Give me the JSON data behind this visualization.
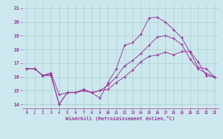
{
  "xlabel": "Windchill (Refroidissement éolien,°C)",
  "background_color": "#cce8ee",
  "line_color": "#993399",
  "grid_color": "#aacccc",
  "xlim": [
    -0.5,
    23.5
  ],
  "ylim": [
    13.7,
    21.3
  ],
  "xticks": [
    0,
    1,
    2,
    3,
    4,
    5,
    6,
    7,
    8,
    9,
    10,
    11,
    12,
    13,
    14,
    15,
    16,
    17,
    18,
    19,
    20,
    21,
    22,
    23
  ],
  "yticks": [
    14,
    15,
    16,
    17,
    18,
    19,
    20,
    21
  ],
  "line1_x": [
    0,
    1,
    2,
    3,
    4,
    5,
    6,
    7,
    8,
    9,
    10,
    11,
    12,
    13,
    14,
    15,
    16,
    17,
    18,
    19,
    20,
    21,
    22,
    23
  ],
  "line1_y": [
    16.6,
    16.6,
    16.1,
    16.3,
    14.7,
    14.85,
    14.85,
    15.1,
    14.85,
    14.45,
    15.6,
    16.6,
    18.3,
    18.5,
    19.1,
    20.3,
    20.35,
    20.0,
    19.45,
    18.85,
    17.8,
    16.7,
    16.6,
    16.0
  ],
  "line2_x": [
    0,
    1,
    2,
    3,
    4,
    5,
    6,
    7,
    8,
    9,
    10,
    11,
    12,
    13,
    14,
    15,
    16,
    17,
    18,
    19,
    20,
    21,
    22,
    23
  ],
  "line2_y": [
    16.6,
    16.6,
    16.1,
    16.2,
    14.0,
    14.85,
    14.85,
    15.0,
    14.85,
    15.0,
    15.4,
    16.0,
    16.8,
    17.2,
    17.7,
    18.3,
    18.9,
    19.0,
    18.8,
    18.35,
    17.3,
    16.6,
    16.25,
    16.0
  ],
  "line3_x": [
    0,
    1,
    2,
    3,
    4,
    5,
    6,
    7,
    8,
    9,
    10,
    11,
    12,
    13,
    14,
    15,
    16,
    17,
    18,
    19,
    20,
    21,
    22,
    23
  ],
  "line3_y": [
    16.6,
    16.6,
    16.1,
    16.1,
    14.0,
    14.85,
    14.85,
    15.0,
    14.85,
    15.0,
    15.1,
    15.6,
    16.0,
    16.5,
    17.1,
    17.5,
    17.6,
    17.8,
    17.6,
    17.85,
    17.85,
    17.1,
    16.1,
    16.0
  ]
}
